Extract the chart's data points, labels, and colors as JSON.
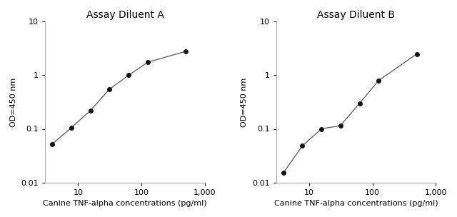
{
  "plot_A": {
    "title": "Assay Diluent A",
    "x": [
      3.9,
      7.8,
      15.6,
      31.25,
      62.5,
      125,
      500
    ],
    "y": [
      0.052,
      0.105,
      0.22,
      0.55,
      1.0,
      1.75,
      2.8
    ],
    "xlabel": "Canine TNF-alpha concentrations (pg/ml)",
    "ylabel": "OD=450 nm"
  },
  "plot_B": {
    "title": "Assay Diluent B",
    "x": [
      3.9,
      7.8,
      15.6,
      31.25,
      62.5,
      125,
      500
    ],
    "y": [
      0.015,
      0.048,
      0.1,
      0.115,
      0.3,
      0.8,
      2.5
    ],
    "xlabel": "Canine TNF-alpha concentrations (pg/ml)",
    "ylabel": "OD=450 nm"
  },
  "xlim": [
    3,
    1000
  ],
  "ylim": [
    0.01,
    10
  ],
  "xticks": [
    10,
    100,
    1000
  ],
  "yticks": [
    0.01,
    0.1,
    1,
    10
  ],
  "xtick_labels": [
    "10",
    "100",
    "1,000"
  ],
  "ytick_labels": [
    "0.01",
    "0.1",
    "1",
    "10"
  ],
  "marker": "o",
  "markersize": 4,
  "linecolor": "#555555",
  "markercolor": "#111111",
  "title_fontsize": 10,
  "label_fontsize": 8,
  "tick_fontsize": 8,
  "bg_color": "#ffffff",
  "spine_color": "#aaaaaa"
}
